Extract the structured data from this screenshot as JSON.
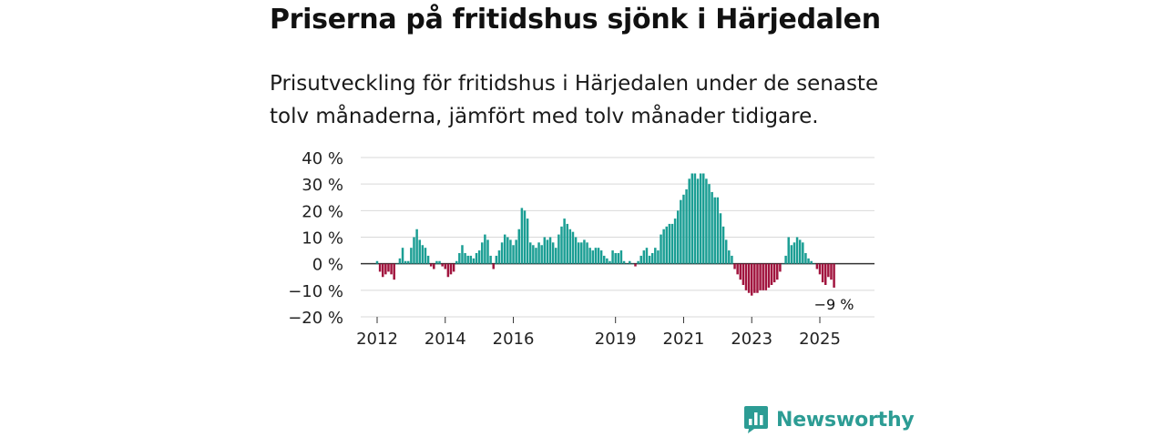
{
  "header": {
    "title": "Priserna på fritidshus sjönk i Härjedalen",
    "subtitle": "Prisutveckling för fritidshus i Härjedalen under de senaste tolv månaderna, jämfört med tolv månader tidigare."
  },
  "brand": {
    "name": "Newsworthy",
    "icon": "newsworthy-logo-icon"
  },
  "colors": {
    "positive": "#1b9e94",
    "negative": "#a1143e",
    "grid": "#d9d9d9",
    "zero": "#333333"
  },
  "chart_data": {
    "type": "bar",
    "title": "Prisutveckling för fritidshus i Härjedalen",
    "ylabel": "",
    "xlabel": "",
    "ylim": [
      -20,
      40
    ],
    "yticks": [
      40,
      30,
      20,
      10,
      0,
      -10,
      -20
    ],
    "ytick_labels": [
      "40 %",
      "30 %",
      "20 %",
      "10 %",
      "0 %",
      "−10 %",
      "−20 %"
    ],
    "xticks": [
      {
        "label": "2012",
        "year": 2012
      },
      {
        "label": "2014",
        "year": 2014
      },
      {
        "label": "2016",
        "year": 2016
      },
      {
        "label": "2019",
        "year": 2019
      },
      {
        "label": "2021",
        "year": 2021
      },
      {
        "label": "2023",
        "year": 2023
      },
      {
        "label": "2025",
        "year": 2025
      }
    ],
    "start": {
      "year": 2012,
      "month": 1
    },
    "last_value_label": "−9 %",
    "unit": "%",
    "values": [
      1,
      -3,
      -5,
      -4,
      -3,
      -4,
      -6,
      0,
      2,
      6,
      1,
      1,
      6,
      10,
      13,
      9,
      7,
      6,
      3,
      -1,
      -2,
      1,
      1,
      -1,
      -2,
      -5,
      -4,
      -3,
      1,
      4,
      7,
      4,
      3,
      3,
      2,
      4,
      5,
      8,
      11,
      9,
      3,
      -2,
      3,
      5,
      8,
      11,
      10,
      9,
      7,
      9,
      13,
      21,
      20,
      17,
      8,
      7,
      6,
      8,
      7,
      10,
      9,
      10,
      8,
      6,
      11,
      14,
      17,
      15,
      13,
      12,
      10,
      8,
      8,
      9,
      8,
      6,
      5,
      6,
      6,
      5,
      3,
      2,
      1,
      5,
      4,
      4,
      5,
      1,
      0,
      1,
      0,
      -1,
      1,
      3,
      5,
      6,
      3,
      4,
      6,
      5,
      11,
      13,
      14,
      15,
      15,
      17,
      20,
      24,
      26,
      28,
      32,
      34,
      34,
      32,
      34,
      34,
      32,
      30,
      27,
      25,
      25,
      19,
      14,
      9,
      5,
      3,
      -2,
      -4,
      -6,
      -8,
      -10,
      -11,
      -12,
      -11,
      -11,
      -10,
      -10,
      -10,
      -9,
      -8,
      -7,
      -6,
      -3,
      0,
      3,
      10,
      7,
      8,
      10,
      9,
      8,
      4,
      2,
      1,
      0,
      -2,
      -4,
      -7,
      -8,
      -5,
      -6,
      -9
    ]
  }
}
